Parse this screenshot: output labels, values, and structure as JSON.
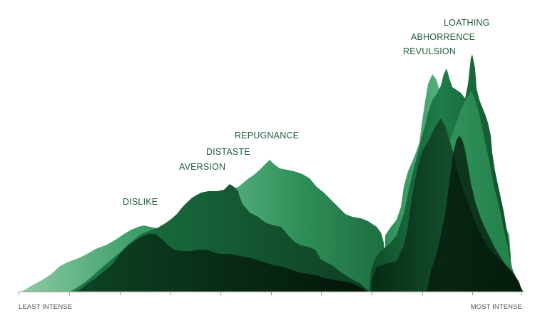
{
  "diagram": {
    "emotions": [
      {
        "id": "dislike",
        "label": "DISLIKE",
        "color": "#1c7845"
      },
      {
        "id": "aversion",
        "label": "AVERSION",
        "color": "#124f2c"
      },
      {
        "id": "distaste",
        "label": "DISTASTE",
        "color": "#0a3a1d"
      },
      {
        "id": "repugnance",
        "label": "REPUGNANCE",
        "color": "#3aa069"
      },
      {
        "id": "revulsion",
        "label": "REVULSION",
        "color": "#49a672"
      },
      {
        "id": "abhorrence",
        "label": "ABHORRENCE",
        "color": "#1c7c48"
      },
      {
        "id": "loathing",
        "label": "LOATHING",
        "color": "#2f9458"
      }
    ],
    "axis": {
      "left_label": "LEAST INTENSE",
      "right_label": "MOST INTENSE",
      "color": "#999999"
    }
  }
}
